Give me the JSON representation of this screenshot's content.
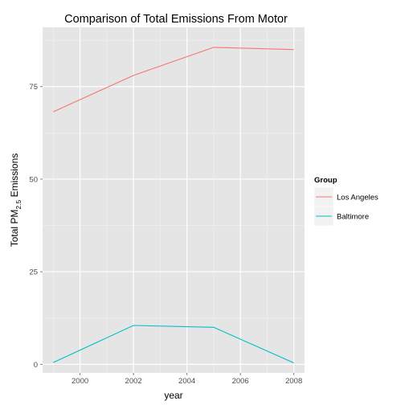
{
  "chart_data": {
    "type": "line",
    "title": "Comparison of Total Emissions From Motor",
    "xlabel": "year",
    "ylabel": {
      "main": "Total PM",
      "sub": "2.5",
      "tail": " Emissions"
    },
    "xlim": [
      1998.6,
      2008.4
    ],
    "ylim": [
      -2.3,
      91.0
    ],
    "xticks": [
      2000,
      2002,
      2004,
      2006,
      2008
    ],
    "yticks": [
      0,
      25,
      50,
      75
    ],
    "xminor": [
      1999,
      2001,
      2003,
      2005,
      2007
    ],
    "yminor": [
      12.5,
      37.5,
      62.5,
      87.5
    ],
    "grid": true,
    "legend": {
      "title": "Group",
      "placement": "right"
    },
    "series": [
      {
        "name": "Los Angeles",
        "color": "#F8766D",
        "x": [
          1999,
          2002,
          2005,
          2008
        ],
        "y": [
          68.2,
          78.0,
          85.6,
          85.0
        ]
      },
      {
        "name": "Baltimore",
        "color": "#00BFC4",
        "x": [
          1999,
          2002,
          2005,
          2008
        ],
        "y": [
          0.5,
          10.5,
          10.0,
          0.4
        ]
      }
    ]
  }
}
